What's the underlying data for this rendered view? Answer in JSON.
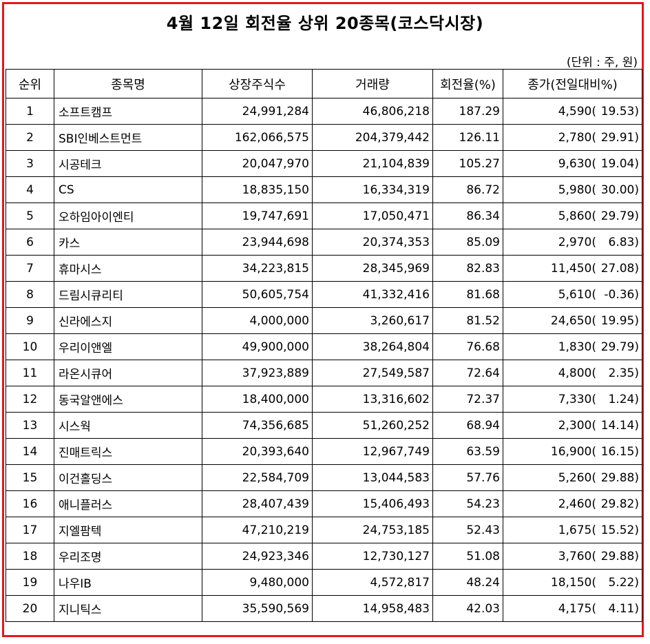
{
  "title": "4월 12일 회전율 상위 20종목(코스닥시장)",
  "unit_note": "(단위 : 주, 원)",
  "headers": [
    "순위",
    "종목명",
    "상장주식수",
    "거래량",
    "회전율(%)",
    "종가(전일대비%)"
  ],
  "rows": [
    {
      "rank": "1",
      "name": "소프트캠프",
      "listed": "24,991,284",
      "volume": "46,806,218",
      "turnover": "187.29",
      "price": "4,590(",
      "change": "19.53)"
    },
    {
      "rank": "2",
      "name": "SBI인베스트먼트",
      "listed": "162,066,575",
      "volume": "204,379,442",
      "turnover": "126.11",
      "price": "2,780(",
      "change": "29.91)"
    },
    {
      "rank": "3",
      "name": "시공테크",
      "listed": "20,047,970",
      "volume": "21,104,839",
      "turnover": "105.27",
      "price": "9,630(",
      "change": "19.04)"
    },
    {
      "rank": "4",
      "name": "CS",
      "listed": "18,835,150",
      "volume": "16,334,319",
      "turnover": "86.72",
      "price": "5,980(",
      "change": "30.00)"
    },
    {
      "rank": "5",
      "name": "오하임아이엔티",
      "listed": "19,747,691",
      "volume": "17,050,471",
      "turnover": "86.34",
      "price": "5,860(",
      "change": "29.79)"
    },
    {
      "rank": "6",
      "name": "카스",
      "listed": "23,944,698",
      "volume": "20,374,353",
      "turnover": "85.09",
      "price": "2,970(",
      "change": "6.83)"
    },
    {
      "rank": "7",
      "name": "휴마시스",
      "listed": "34,223,815",
      "volume": "28,345,969",
      "turnover": "82.83",
      "price": "11,450(",
      "change": "27.08)"
    },
    {
      "rank": "8",
      "name": "드림시큐리티",
      "listed": "50,605,754",
      "volume": "41,332,416",
      "turnover": "81.68",
      "price": "5,610(",
      "change": "-0.36)"
    },
    {
      "rank": "9",
      "name": "신라에스지",
      "listed": "4,000,000",
      "volume": "3,260,617",
      "turnover": "81.52",
      "price": "24,650(",
      "change": "19.95)"
    },
    {
      "rank": "10",
      "name": "우리이앤엘",
      "listed": "49,900,000",
      "volume": "38,264,804",
      "turnover": "76.68",
      "price": "1,830(",
      "change": "29.79)"
    },
    {
      "rank": "11",
      "name": "라온시큐어",
      "listed": "37,923,889",
      "volume": "27,549,587",
      "turnover": "72.64",
      "price": "4,800(",
      "change": "2.35)"
    },
    {
      "rank": "12",
      "name": "동국알앤에스",
      "listed": "18,400,000",
      "volume": "13,316,602",
      "turnover": "72.37",
      "price": "7,330(",
      "change": "1.24)"
    },
    {
      "rank": "13",
      "name": "시스웍",
      "listed": "74,356,685",
      "volume": "51,260,252",
      "turnover": "68.94",
      "price": "2,300(",
      "change": "14.14)"
    },
    {
      "rank": "14",
      "name": "진매트릭스",
      "listed": "20,393,640",
      "volume": "12,967,749",
      "turnover": "63.59",
      "price": "16,900(",
      "change": "16.15)"
    },
    {
      "rank": "15",
      "name": "이건홀딩스",
      "listed": "22,584,709",
      "volume": "13,044,583",
      "turnover": "57.76",
      "price": "5,260(",
      "change": "29.88)"
    },
    {
      "rank": "16",
      "name": "애니플러스",
      "listed": "28,407,439",
      "volume": "15,406,493",
      "turnover": "54.23",
      "price": "2,460(",
      "change": "29.82)"
    },
    {
      "rank": "17",
      "name": "지엘팜텍",
      "listed": "47,210,219",
      "volume": "24,753,185",
      "turnover": "52.43",
      "price": "1,675(",
      "change": "15.52)"
    },
    {
      "rank": "18",
      "name": "우리조명",
      "listed": "24,923,346",
      "volume": "12,730,127",
      "turnover": "51.08",
      "price": "3,760(",
      "change": "29.88)"
    },
    {
      "rank": "19",
      "name": "나우IB",
      "listed": "9,480,000",
      "volume": "4,572,817",
      "turnover": "48.24",
      "price": "18,150(",
      "change": "5.22)"
    },
    {
      "rank": "20",
      "name": "지니틱스",
      "listed": "35,590,569",
      "volume": "14,958,483",
      "turnover": "42.03",
      "price": "4,175(",
      "change": "4.11)"
    }
  ],
  "colors": {
    "frame_border": "#e8141b",
    "text": "#000000",
    "background": "#ffffff"
  }
}
